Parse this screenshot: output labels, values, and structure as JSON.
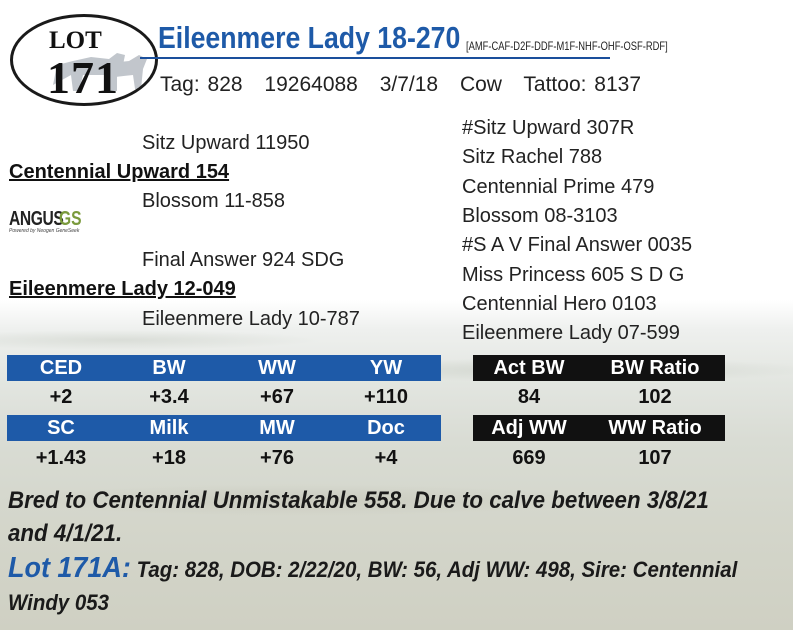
{
  "lot": {
    "word": "LOT",
    "number": "171"
  },
  "animal": {
    "name": "Eileenmere Lady 18-270",
    "codes": "[AMF-CAF-D2F-DDF-M1F-NHF-OHF-OSF-RDF]",
    "tag": "Tag: 828",
    "reg": "19264088",
    "dob": "3/7/18",
    "sex": "Cow",
    "tattoo": "Tattoo: 8137"
  },
  "pedigree": {
    "sire": "Centennial Upward 154",
    "sire_sire": "Sitz Upward 11950",
    "sire_dam": "Blossom 11-858",
    "dam": "Eileenmere Lady 12-049",
    "dam_sire": "Final Answer 924 SDG",
    "dam_dam": "Eileenmere Lady 10-787",
    "right": [
      "#Sitz Upward 307R",
      "Sitz Rachel 788",
      "Centennial Prime 479",
      "Blossom 08-3103",
      "#S A V Final Answer 0035",
      "Miss Princess 605 S D G",
      "Centennial Hero 0103",
      "Eileenmere Lady 07-599"
    ]
  },
  "logo": {
    "main": "ANGUS",
    "suffix": "GS",
    "tagline": "Powered by Neogen GeneSeek"
  },
  "epd": {
    "row1": {
      "headers": [
        "CED",
        "BW",
        "WW",
        "YW"
      ],
      "values": [
        "+2",
        "+3.4",
        "+67",
        "+110"
      ]
    },
    "row2": {
      "headers": [
        "SC",
        "Milk",
        "MW",
        "Doc"
      ],
      "values": [
        "+1.43",
        "+18",
        "+76",
        "+4"
      ]
    }
  },
  "actual": {
    "row1": {
      "headers": [
        "Act BW",
        "BW Ratio"
      ],
      "values": [
        "84",
        "102"
      ]
    },
    "row2": {
      "headers": [
        "Adj WW",
        "WW Ratio"
      ],
      "values": [
        "669",
        "107"
      ]
    }
  },
  "notes": {
    "bred": "Bred to Centennial Unmistakable 558. Due to calve between 3/8/21 and 4/1/21.",
    "lot_a_label": "Lot 171A:",
    "lot_a_text": "Tag: 828, DOB: 2/22/20, BW: 56, Adj WW: 498, Sire: Centennial Windy 053"
  },
  "colors": {
    "accent_blue": "#1e5aa8",
    "black": "#111111"
  }
}
